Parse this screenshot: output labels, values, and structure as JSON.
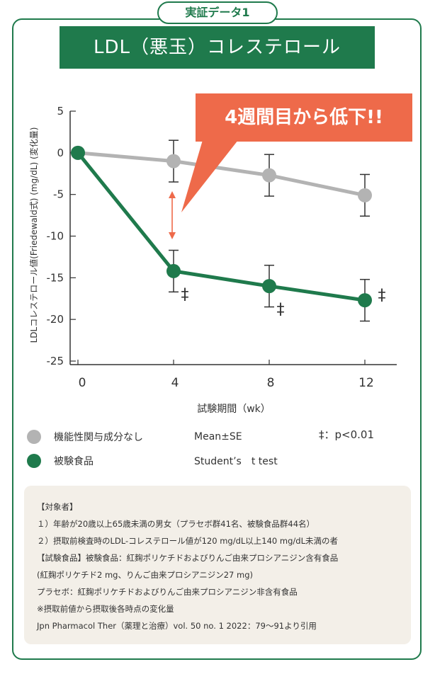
{
  "badge": "実証データ1",
  "title": "LDL（悪玉）コレステロール",
  "callout": "4週間目から低下!!",
  "chart_data": {
    "type": "line",
    "x": [
      0,
      4,
      8,
      12
    ],
    "xlabel": "試験期間（wk）",
    "ylabel": "LDLコレステロール値(Friedewald式) (mg/dL) (変化量)",
    "xlim": [
      0,
      12
    ],
    "ylim": [
      -25,
      5
    ],
    "x_ticks": [
      "0",
      "4",
      "8",
      "12"
    ],
    "y_ticks": [
      "5",
      "0",
      "-5",
      "-10",
      "-15",
      "-20",
      "-25"
    ],
    "series": [
      {
        "name": "機能性関与成分なし",
        "color": "#b3b3b3",
        "values": [
          0,
          -1.0,
          -2.7,
          -5.1
        ],
        "errors": [
          0,
          2.5,
          2.5,
          2.5
        ]
      },
      {
        "name": "被験食品",
        "color": "#1f7a4c",
        "values": [
          0,
          -14.2,
          -16.0,
          -17.7
        ],
        "errors": [
          0,
          2.5,
          2.5,
          2.5
        ],
        "significance": [
          "",
          "‡",
          "‡",
          "‡"
        ]
      }
    ]
  },
  "legend": {
    "stat1": "Mean±SE",
    "stat2": "Student’s　t test",
    "sig": "‡：p<0.01"
  },
  "notes": [
    "【対象者】",
    "１）年齢が20歳以上65歳未満の男女（プラセボ群41名、被験食品群44名）",
    "２）摂取前検査時のLDL-コレステロール値が120 mg/dL以上140 mg/dL未満の者",
    "【試験食品】被験食品：紅麹ポリケチドおよびりんご由来プロシアニジン含有食品",
    "(紅麹ポリケチド2 mg、りんご由来プロシアニジン27 mg)",
    "プラセボ：紅麹ポリケチドおよびりんご由来プロシアニジン非含有食品",
    "※摂取前値から摂取後各時点の変化量",
    "Jpn Pharmacol Ther（薬理と治療）vol. 50 no. 1 2022：79〜91より引用"
  ]
}
